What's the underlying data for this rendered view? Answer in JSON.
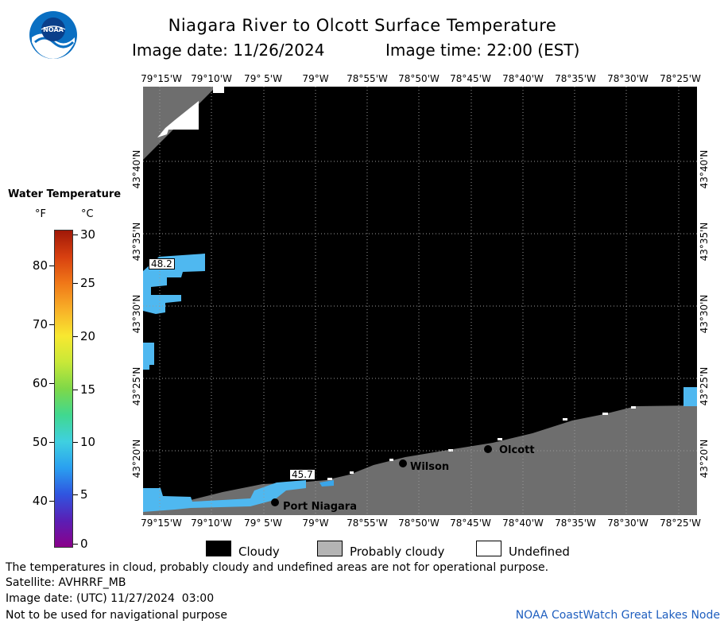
{
  "header": {
    "title": "Niagara River to Olcott Surface Temperature",
    "image_date": "Image date: 11/26/2024",
    "image_time": "Image time: 22:00 (EST)"
  },
  "logo": {
    "text": "NOAA",
    "icon": "noaa-logo"
  },
  "axes": {
    "lon_labels": [
      "79°15'W",
      "79°10'W",
      "79° 5'W",
      "79°W",
      "78°55'W",
      "78°50'W",
      "78°45'W",
      "78°40'W",
      "78°35'W",
      "78°30'W",
      "78°25'W"
    ],
    "lat_labels": [
      "43°40'N",
      "43°35'N",
      "43°30'N",
      "43°25'N",
      "43°20'N"
    ]
  },
  "legend": {
    "title": "Water Temperature",
    "unit_f": "°F",
    "unit_c": "°C",
    "ticks_f": [
      "80",
      "70",
      "60",
      "50",
      "40"
    ],
    "ticks_c": [
      "30",
      "25",
      "20",
      "15",
      "10",
      "5",
      "0"
    ],
    "colors": [
      "#8a008a",
      "#5a1fb5",
      "#2f55e0",
      "#2aa0f0",
      "#3fd0e0",
      "#40d890",
      "#7ed848",
      "#c8e838",
      "#f8e830",
      "#f8b028",
      "#f07818",
      "#d84010",
      "#a01808"
    ]
  },
  "places": {
    "olcott": "Olcott",
    "wilson": "Wilson",
    "port_niagara": "Port Niagara"
  },
  "temps": {
    "t1": "48.2",
    "t2": "45.7"
  },
  "key": {
    "cloudy": "Cloudy",
    "probably_cloudy": "Probably cloudy",
    "undefined": "Undefined",
    "cloudy_color": "#000000",
    "probably_cloudy_color": "#b4b4b4",
    "undefined_color": "#ffffff"
  },
  "footer": {
    "note": "The temperatures in cloud, probably cloudy and undefined areas are not for operational purpose.",
    "satellite": "Satellite: AVHRRF_MB",
    "utc": "Image date: (UTC) 11/27/2024  03:00",
    "nav": "Not to be used for navigational purpose",
    "credit": "NOAA CoastWatch Great Lakes Node"
  },
  "colors": {
    "land": "#6e6e6e",
    "cloud": "#000000",
    "water_warm": "#4fb8f0",
    "water_cool": "#3aa6ea"
  }
}
